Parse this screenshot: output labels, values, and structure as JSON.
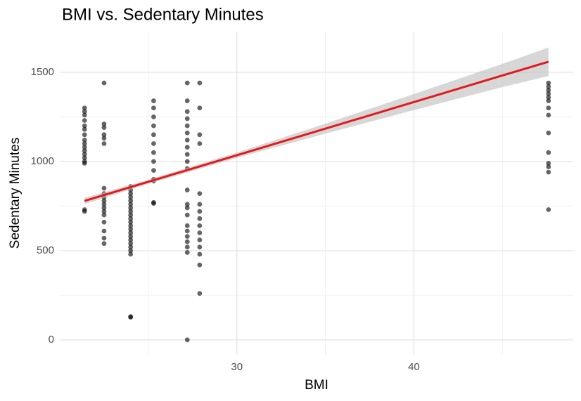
{
  "chart_data": {
    "type": "scatter",
    "title": "BMI vs. Sedentary Minutes",
    "x_label": "BMI",
    "y_label": "Sedentary Minutes",
    "x": [
      21.4,
      21.4,
      21.4,
      21.4,
      21.4,
      21.4,
      21.4,
      21.4,
      21.4,
      21.4,
      21.4,
      21.4,
      21.4,
      21.4,
      21.4,
      21.4,
      21.4,
      22.5,
      22.5,
      22.5,
      22.5,
      22.5,
      22.5,
      22.5,
      22.5,
      22.5,
      22.5,
      22.5,
      22.5,
      22.5,
      22.5,
      22.5,
      22.5,
      22.5,
      22.5,
      24,
      24,
      24,
      24,
      24,
      24,
      24,
      24,
      24,
      24,
      24,
      24,
      24,
      24,
      24,
      24,
      24,
      24,
      24,
      24,
      24,
      24,
      25.3,
      25.3,
      25.3,
      25.3,
      25.3,
      25.3,
      25.3,
      25.3,
      25.3,
      25.3,
      25.3,
      25.3,
      25.3,
      27.2,
      27.2,
      27.2,
      27.2,
      27.2,
      27.2,
      27.2,
      27.2,
      27.2,
      27.2,
      27.2,
      27.2,
      27.2,
      27.2,
      27.2,
      27.2,
      27.2,
      27.2,
      27.2,
      27.2,
      27.2,
      27.2,
      27.9,
      27.9,
      27.9,
      27.9,
      27.9,
      27.9,
      27.9,
      27.9,
      27.9,
      27.9,
      27.9,
      27.9,
      27.9,
      27.9,
      27.9,
      47.6,
      47.6,
      47.6,
      47.6,
      47.6,
      47.6,
      47.6,
      47.6,
      47.6,
      47.6,
      47.6,
      47.6,
      47.6,
      47.6
    ],
    "values": [
      720,
      730,
      990,
      1000,
      1020,
      1040,
      1060,
      1080,
      1100,
      1120,
      1150,
      1180,
      1200,
      1230,
      1260,
      1280,
      1300,
      540,
      570,
      610,
      660,
      700,
      720,
      740,
      760,
      780,
      800,
      820,
      850,
      1100,
      1130,
      1150,
      1190,
      1210,
      1440,
      127,
      130,
      480,
      500,
      520,
      540,
      560,
      580,
      600,
      620,
      640,
      660,
      680,
      700,
      720,
      740,
      760,
      780,
      800,
      820,
      840,
      860,
      765,
      770,
      890,
      900,
      950,
      1000,
      1050,
      1100,
      1150,
      1200,
      1250,
      1300,
      1340,
      0,
      490,
      520,
      550,
      580,
      610,
      640,
      700,
      740,
      760,
      840,
      960,
      1000,
      1040,
      1080,
      1120,
      1160,
      1200,
      1240,
      1280,
      1340,
      1440,
      260,
      420,
      480,
      520,
      560,
      600,
      640,
      680,
      720,
      760,
      820,
      1100,
      1150,
      1300,
      1440,
      730,
      940,
      970,
      990,
      1050,
      1160,
      1260,
      1300,
      1340,
      1360,
      1380,
      1400,
      1420,
      1440
    ],
    "color": "#000000",
    "fit": {
      "x": [
        21.4,
        25,
        30,
        35,
        40,
        45,
        47.6
      ],
      "values": [
        779,
        886,
        1035,
        1184,
        1333,
        1482,
        1559
      ],
      "lower": [
        761,
        874,
        1020,
        1156,
        1288,
        1417,
        1479
      ],
      "upper": [
        797,
        898,
        1050,
        1212,
        1378,
        1547,
        1639
      ],
      "color": "#e31a1c",
      "band_color": "#bdbdbd"
    },
    "xlim": [
      20,
      49
    ],
    "ylim": [
      -83,
      1728
    ],
    "xticks": [
      30,
      40
    ],
    "yticks": [
      0,
      500,
      1000,
      1500
    ],
    "xminor": [
      25,
      35,
      45
    ],
    "yminor": [
      250,
      750,
      1250
    ],
    "grid": true
  }
}
